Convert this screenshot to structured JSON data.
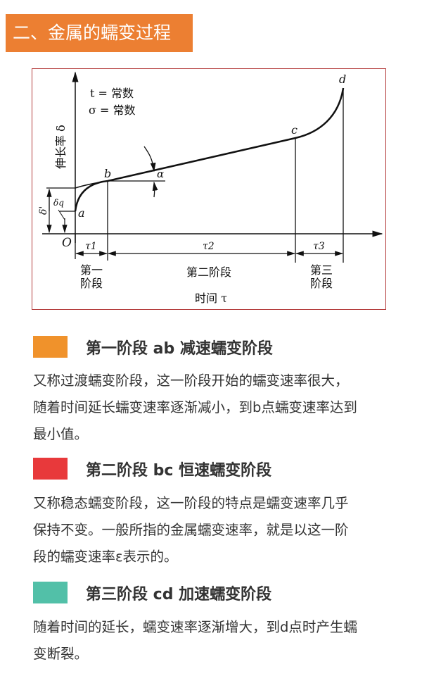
{
  "title": "二、金属的蠕变过程",
  "diagram": {
    "conditions": [
      "t = 常数",
      "σ = 常数"
    ],
    "y_axis_label": "伸长率 δ",
    "x_axis_label": "时间 τ",
    "origin": "O",
    "points": [
      "a",
      "b",
      "c",
      "d"
    ],
    "angle": "α",
    "delta_prime": "δ'",
    "delta_q": "δq",
    "intervals": [
      "τ1",
      "τ2",
      "τ3"
    ],
    "stage_labels": [
      [
        "第一",
        "阶段"
      ],
      "第二阶段",
      [
        "第三",
        "阶段"
      ]
    ]
  },
  "sections": [
    {
      "color": "#f0922b",
      "heading": "第一阶段 ab 减速蠕变阶段",
      "lines": [
        "又称过渡蠕变阶段，这一阶段开始的蠕变速率很大，",
        "随着时间延长蠕变速率逐渐减小，到b点蠕变速率达到",
        "最小值。"
      ]
    },
    {
      "color": "#e8393b",
      "heading": "第二阶段 bc 恒速蠕变阶段",
      "lines": [
        "又称稳态蠕变阶段，这一阶段的特点是蠕变速率几乎",
        "保持不变。一般所指的金属蠕变速率，就是以这一阶",
        "段的蠕变速率ε表示的。"
      ]
    },
    {
      "color": "#52c0a8",
      "heading": "第三阶段 cd 加速蠕变阶段",
      "lines": [
        "随着时间的延长，蠕变速率逐渐增大，到d点时产生蠕",
        "变断裂。"
      ]
    }
  ]
}
